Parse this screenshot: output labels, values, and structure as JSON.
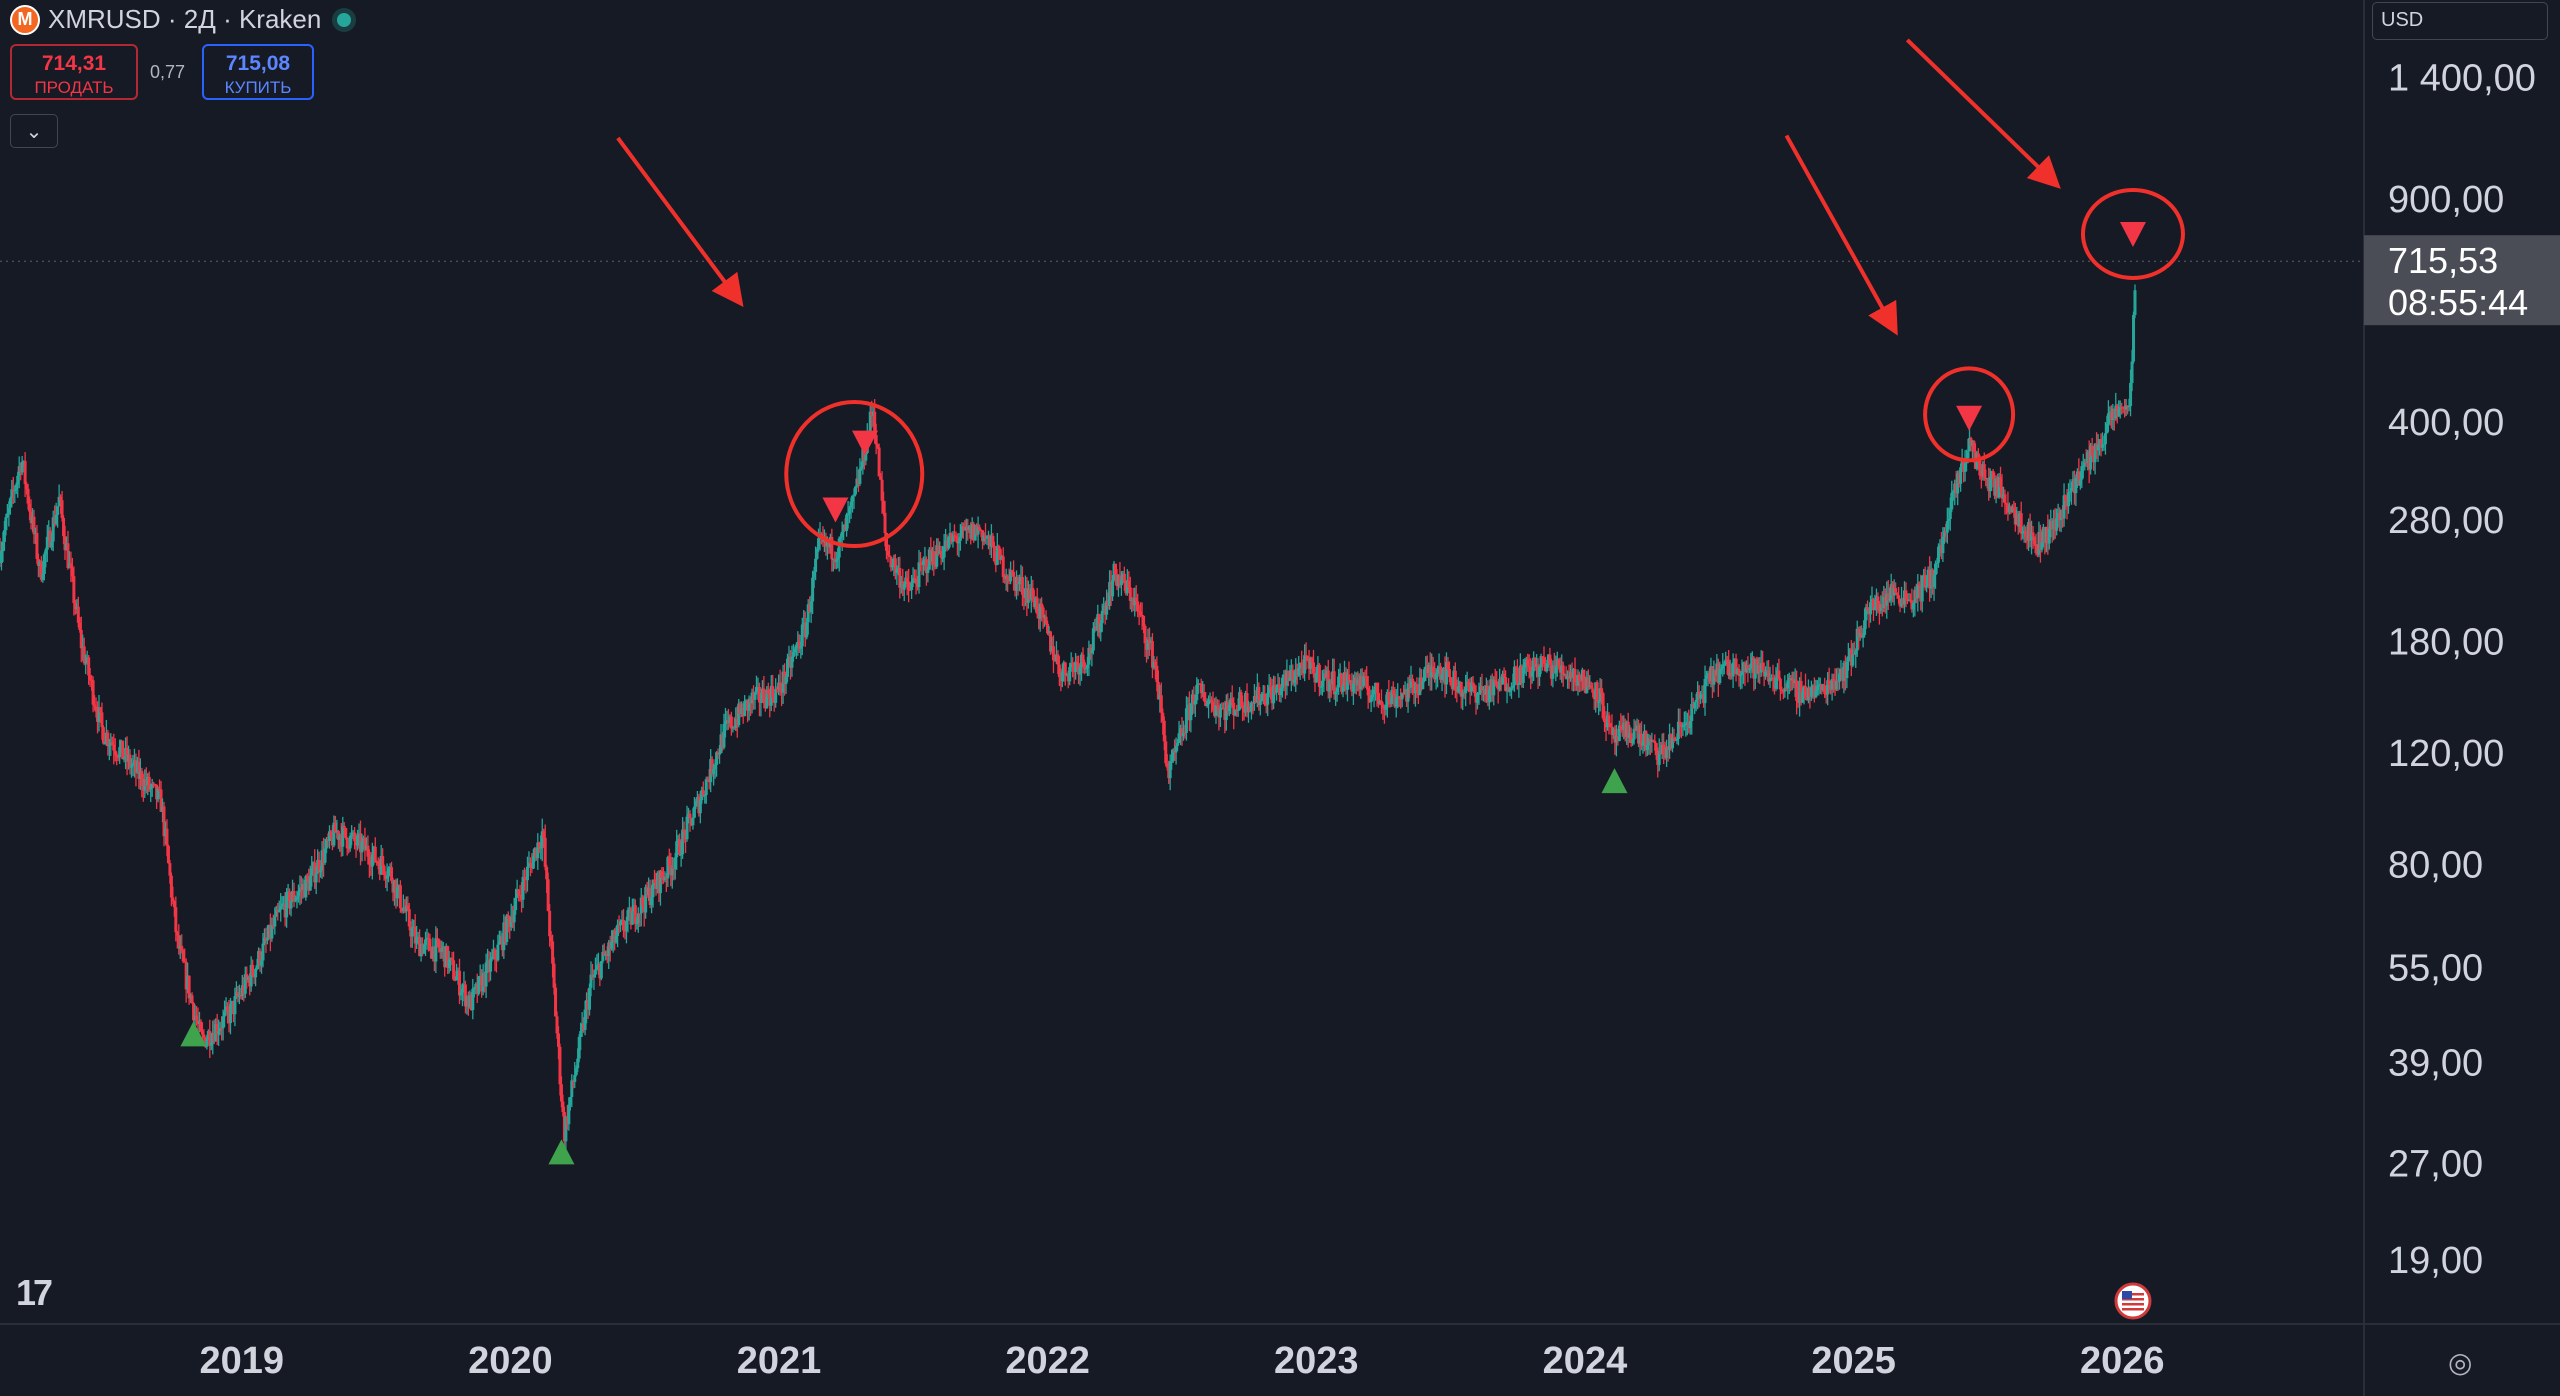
{
  "header": {
    "logo_letter": "M",
    "symbol": "XMRUSD · 2Д · Kraken",
    "sell_price": "714,31",
    "sell_label": "ПРОДАТЬ",
    "spread": "0,77",
    "buy_price": "715,08",
    "buy_label": "КУПИТЬ",
    "collapse_icon": "chevron-down-icon"
  },
  "currency_selector": "USD",
  "footer": {
    "logo": "17",
    "settings_icon": "gear-icon",
    "event_icon": "us-flag-icon"
  },
  "colors": {
    "background": "#161a25",
    "up": "#26a69a",
    "down": "#f23645",
    "annotation": "#f0302a",
    "buy_marker": "#3fa34d",
    "sell_marker": "#f23645"
  },
  "chart_data": {
    "type": "candlestick",
    "scale": "log",
    "ylim": [
      15,
      1850
    ],
    "y_ticks": [
      1400,
      900,
      400,
      280,
      180,
      120,
      80,
      55,
      39,
      27,
      19
    ],
    "y_tick_labels": [
      "1 400,00",
      "900,00",
      "400,00",
      "280,00",
      "180,00",
      "120,00",
      "80,00",
      "55,00",
      "39,00",
      "27,00",
      "19,00"
    ],
    "x_ticks": [
      2019,
      2020,
      2021,
      2022,
      2023,
      2024,
      2025,
      2026
    ],
    "x_tick_labels": [
      "2019",
      "2020",
      "2021",
      "2022",
      "2023",
      "2024",
      "2025",
      "2026"
    ],
    "xlim": [
      2018.1,
      2026.9
    ],
    "current_price": {
      "label": "715,53",
      "value": 715.53,
      "countdown": "08:55:44"
    },
    "price_path": [
      [
        2018.1,
        250
      ],
      [
        2018.18,
        350
      ],
      [
        2018.25,
        230
      ],
      [
        2018.32,
        300
      ],
      [
        2018.4,
        180
      ],
      [
        2018.48,
        130
      ],
      [
        2018.55,
        120
      ],
      [
        2018.62,
        110
      ],
      [
        2018.7,
        100
      ],
      [
        2018.76,
        60
      ],
      [
        2018.85,
        42
      ],
      [
        2018.95,
        46
      ],
      [
        2019.05,
        55
      ],
      [
        2019.15,
        68
      ],
      [
        2019.25,
        75
      ],
      [
        2019.35,
        90
      ],
      [
        2019.45,
        85
      ],
      [
        2019.55,
        78
      ],
      [
        2019.65,
        60
      ],
      [
        2019.75,
        58
      ],
      [
        2019.85,
        48
      ],
      [
        2019.95,
        58
      ],
      [
        2020.05,
        75
      ],
      [
        2020.12,
        90
      ],
      [
        2020.2,
        30
      ],
      [
        2020.3,
        52
      ],
      [
        2020.4,
        62
      ],
      [
        2020.5,
        70
      ],
      [
        2020.6,
        80
      ],
      [
        2020.7,
        100
      ],
      [
        2020.8,
        130
      ],
      [
        2020.9,
        145
      ],
      [
        2021.0,
        150
      ],
      [
        2021.1,
        190
      ],
      [
        2021.15,
        255
      ],
      [
        2021.22,
        250
      ],
      [
        2021.28,
        300
      ],
      [
        2021.35,
        420
      ],
      [
        2021.4,
        250
      ],
      [
        2021.48,
        215
      ],
      [
        2021.55,
        240
      ],
      [
        2021.65,
        260
      ],
      [
        2021.75,
        270
      ],
      [
        2021.85,
        230
      ],
      [
        2021.95,
        210
      ],
      [
        2022.05,
        160
      ],
      [
        2022.15,
        170
      ],
      [
        2022.25,
        230
      ],
      [
        2022.32,
        210
      ],
      [
        2022.4,
        165
      ],
      [
        2022.45,
        110
      ],
      [
        2022.55,
        150
      ],
      [
        2022.65,
        140
      ],
      [
        2022.75,
        145
      ],
      [
        2022.85,
        150
      ],
      [
        2022.95,
        165
      ],
      [
        2023.05,
        155
      ],
      [
        2023.15,
        155
      ],
      [
        2023.25,
        145
      ],
      [
        2023.35,
        150
      ],
      [
        2023.45,
        165
      ],
      [
        2023.55,
        150
      ],
      [
        2023.65,
        150
      ],
      [
        2023.75,
        160
      ],
      [
        2023.85,
        165
      ],
      [
        2023.95,
        160
      ],
      [
        2024.05,
        150
      ],
      [
        2024.1,
        125
      ],
      [
        2024.18,
        130
      ],
      [
        2024.28,
        118
      ],
      [
        2024.38,
        135
      ],
      [
        2024.48,
        160
      ],
      [
        2024.58,
        165
      ],
      [
        2024.68,
        160
      ],
      [
        2024.78,
        150
      ],
      [
        2024.88,
        150
      ],
      [
        2024.98,
        165
      ],
      [
        2025.05,
        200
      ],
      [
        2025.15,
        215
      ],
      [
        2025.22,
        210
      ],
      [
        2025.3,
        230
      ],
      [
        2025.37,
        300
      ],
      [
        2025.43,
        370
      ],
      [
        2025.48,
        330
      ],
      [
        2025.55,
        310
      ],
      [
        2025.62,
        280
      ],
      [
        2025.68,
        255
      ],
      [
        2025.75,
        275
      ],
      [
        2025.82,
        320
      ],
      [
        2025.9,
        360
      ],
      [
        2025.97,
        410
      ],
      [
        2026.03,
        430
      ],
      [
        2026.05,
        715
      ]
    ],
    "markers": [
      {
        "type": "buy",
        "x": 2018.82,
        "y": 43
      },
      {
        "type": "buy",
        "x": 2020.19,
        "y": 28
      },
      {
        "type": "buy",
        "x": 2024.11,
        "y": 108
      },
      {
        "type": "sell",
        "x": 2021.21,
        "y": 290
      },
      {
        "type": "sell",
        "x": 2021.32,
        "y": 370
      },
      {
        "type": "sell",
        "x": 2025.43,
        "y": 405
      },
      {
        "type": "sell",
        "x": 2026.04,
        "y": 790
      }
    ],
    "annotations": [
      {
        "type": "circle",
        "x": 2021.28,
        "y": 330
      },
      {
        "type": "circle",
        "x": 2025.43,
        "y": 410
      },
      {
        "type": "circle",
        "x": 2026.04,
        "y": 790
      },
      {
        "type": "arrow",
        "from": [
          2020.4,
          1120
        ],
        "to": [
          2020.85,
          620
        ]
      },
      {
        "type": "arrow",
        "from": [
          2024.75,
          1130
        ],
        "to": [
          2025.15,
          560
        ]
      },
      {
        "type": "arrow",
        "from": [
          2025.2,
          1600
        ],
        "to": [
          2025.75,
          950
        ]
      }
    ]
  }
}
